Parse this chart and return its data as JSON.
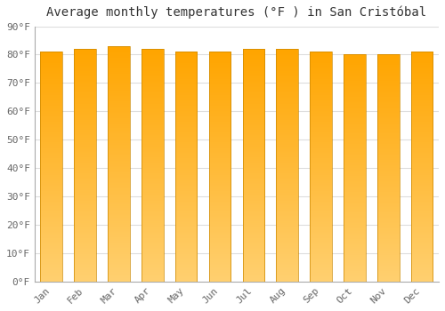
{
  "title": "Average monthly temperatures (°F ) in San Cristóbal",
  "months": [
    "Jan",
    "Feb",
    "Mar",
    "Apr",
    "May",
    "Jun",
    "Jul",
    "Aug",
    "Sep",
    "Oct",
    "Nov",
    "Dec"
  ],
  "values": [
    81,
    82,
    83,
    82,
    81,
    81,
    82,
    82,
    81,
    80,
    80,
    81
  ],
  "bar_color": "#FFA500",
  "bar_color_light": "#FFD070",
  "background_color": "#FFFFFF",
  "plot_bg_color": "#FFFFFF",
  "ylim": [
    0,
    90
  ],
  "yticks": [
    0,
    10,
    20,
    30,
    40,
    50,
    60,
    70,
    80,
    90
  ],
  "ytick_labels": [
    "0°F",
    "10°F",
    "20°F",
    "30°F",
    "40°F",
    "50°F",
    "60°F",
    "70°F",
    "80°F",
    "90°F"
  ],
  "grid_color": "#DDDDDD",
  "title_fontsize": 10,
  "tick_fontsize": 8,
  "tick_color": "#666666",
  "bar_width": 0.65
}
